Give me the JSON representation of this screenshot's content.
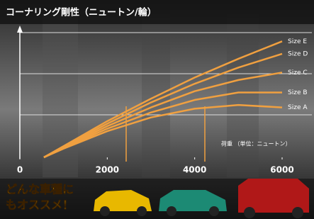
{
  "chart_data": {
    "type": "line",
    "title": "コーナリング剛性（ニュートン/輪）",
    "x": [
      550,
      1000,
      2000,
      3000,
      4000,
      5000,
      6000
    ],
    "series": [
      {
        "name": "Size E",
        "color": "#f0a040",
        "values": [
          0,
          9,
          29,
          47,
          64,
          79,
          93
        ]
      },
      {
        "name": "Size D",
        "color": "#f0a040",
        "values": [
          0,
          8.5,
          27,
          44,
          59,
          72,
          83
        ]
      },
      {
        "name": "Size C",
        "color": "#f0a040",
        "values": [
          0,
          8,
          25,
          40,
          53,
          62,
          68
        ]
      },
      {
        "name": "Size B",
        "color": "#f0a040",
        "values": [
          0,
          7.5,
          23,
          36,
          46,
          52,
          52
        ]
      },
      {
        "name": "Size A",
        "color": "#f0a040",
        "values": [
          0,
          7,
          21,
          32,
          39,
          42,
          40
        ]
      }
    ],
    "xlim": [
      0,
      6000
    ],
    "xticks": [
      0,
      2000,
      4000,
      6000
    ],
    "ylim": [
      0,
      100
    ],
    "annotation": "荷重 （単位：ニュートン）",
    "promo": [
      "どんな車種に",
      "もオススメ！"
    ]
  }
}
